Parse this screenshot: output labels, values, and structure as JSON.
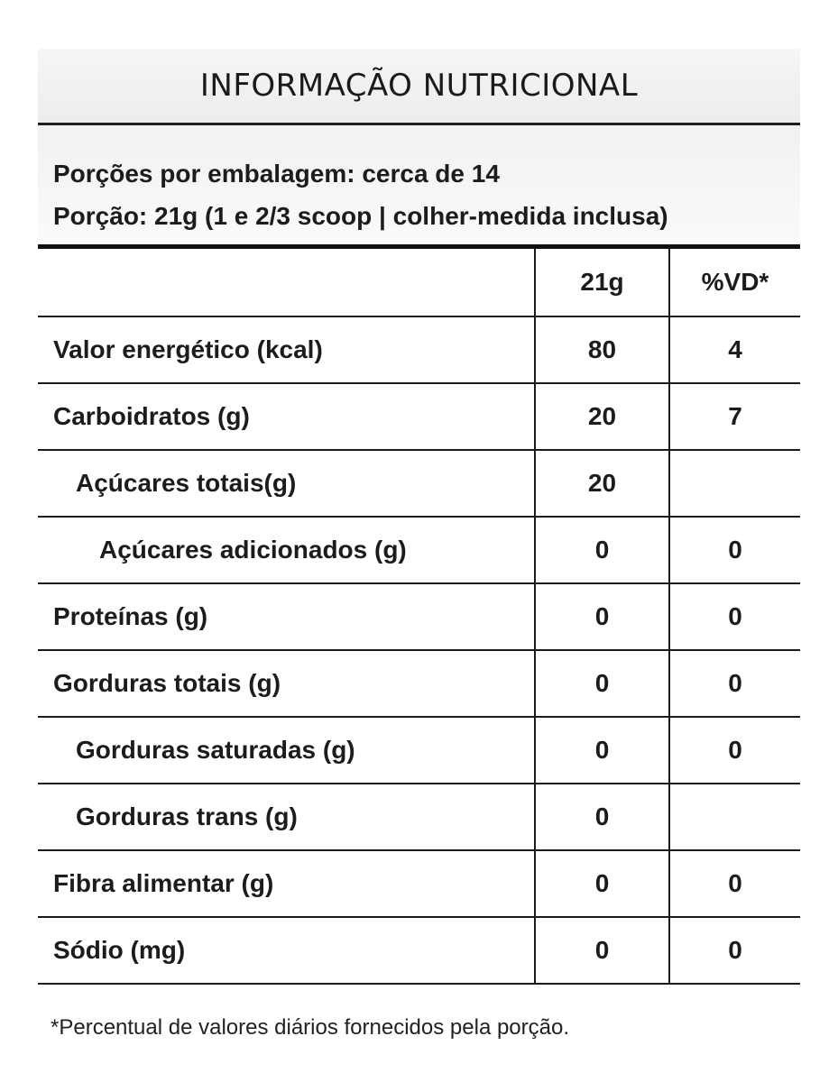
{
  "title": "INFORMAÇÃO NUTRICIONAL",
  "servings_per_package": "Porções por embalagem: cerca de 14",
  "serving_size": "Porção: 21g (1 e 2/3 scoop | colher-medida inclusa)",
  "table": {
    "columns": [
      "",
      "21g",
      "%VD*"
    ],
    "rows": [
      {
        "name": "Valor energético (kcal)",
        "amount": "80",
        "vd": "4"
      },
      {
        "name": "Carboidratos (g)",
        "amount": "20",
        "vd": "7"
      },
      {
        "name": "Açúcares totais(g)",
        "amount": "20",
        "vd": ""
      },
      {
        "name": "Açúcares adicionados (g)",
        "amount": "0",
        "vd": "0"
      },
      {
        "name": "Proteínas (g)",
        "amount": "0",
        "vd": "0"
      },
      {
        "name": "Gorduras totais (g)",
        "amount": "0",
        "vd": "0"
      },
      {
        "name": "Gorduras saturadas (g)",
        "amount": "0",
        "vd": "0"
      },
      {
        "name": "Gorduras trans (g)",
        "amount": "0",
        "vd": ""
      },
      {
        "name": "Fibra alimentar (g)",
        "amount": "0",
        "vd": "0"
      },
      {
        "name": "Sódio (mg)",
        "amount": "0",
        "vd": "0"
      }
    ]
  },
  "footnote": "*Percentual de valores diários fornecidos pela porção."
}
